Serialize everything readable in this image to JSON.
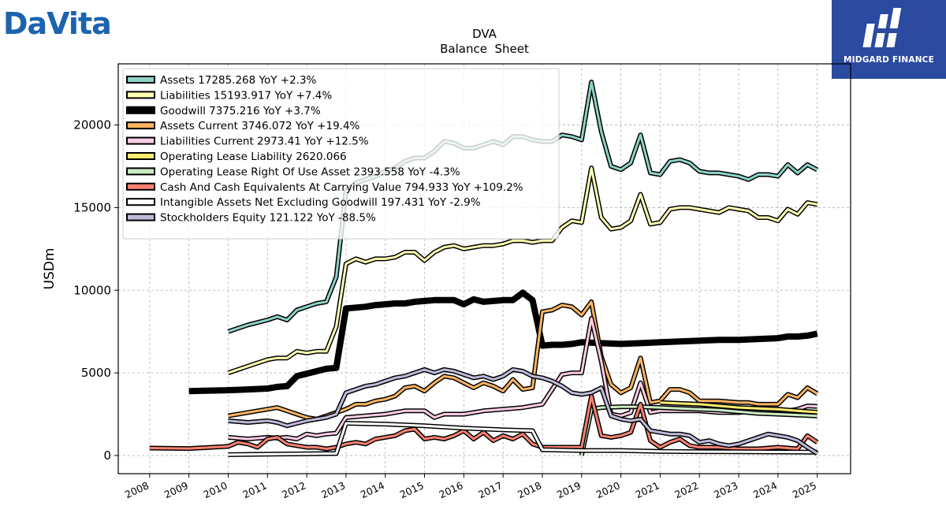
{
  "logo": {
    "left_brand": "DaVita",
    "right_brand": "MIDGARD FINANCE"
  },
  "chart_data": {
    "type": "line",
    "title": "DVA",
    "subtitle": "Balance  Sheet",
    "ylabel": "USDm",
    "xlabel": "",
    "ylim": [
      -1100,
      23700
    ],
    "xlim": [
      2007.2,
      2025.85
    ],
    "y_ticks": [
      0,
      5000,
      10000,
      15000,
      20000
    ],
    "x_ticks": [
      "2008",
      "2009",
      "2010",
      "2011",
      "2012",
      "2013",
      "2014",
      "2015",
      "2016",
      "2017",
      "2018",
      "2019",
      "2020",
      "2021",
      "2022",
      "2023",
      "2024",
      "2025"
    ],
    "grid": true,
    "legend_position": "top-left",
    "series": [
      {
        "name": "Assets",
        "legend": "Assets  17285.268 YoY +2.3%",
        "color": "#8dd3c7",
        "x": [
          2010.0,
          2010.5,
          2011.0,
          2011.25,
          2011.5,
          2011.75,
          2012.0,
          2012.25,
          2012.5,
          2012.75,
          2013.0,
          2013.25,
          2013.5,
          2013.75,
          2014.0,
          2014.25,
          2014.5,
          2014.75,
          2015.0,
          2015.25,
          2015.5,
          2015.75,
          2016.0,
          2016.25,
          2016.5,
          2016.75,
          2017.0,
          2017.25,
          2017.5,
          2017.75,
          2018.0,
          2018.25,
          2018.5,
          2018.75,
          2019.0,
          2019.25,
          2019.5,
          2019.75,
          2020.0,
          2020.25,
          2020.5,
          2020.75,
          2021.0,
          2021.25,
          2021.5,
          2021.75,
          2022.0,
          2022.25,
          2022.5,
          2022.75,
          2023.0,
          2023.25,
          2023.5,
          2023.75,
          2024.0,
          2024.25,
          2024.5,
          2024.75,
          2025.0
        ],
        "values": [
          7500,
          7900,
          8200,
          8400,
          8200,
          8800,
          9000,
          9200,
          9300,
          10800,
          16000,
          16500,
          16700,
          16900,
          17200,
          17400,
          17800,
          18000,
          18000,
          18400,
          19000,
          18900,
          18600,
          18600,
          18800,
          19000,
          18800,
          19300,
          19300,
          19100,
          19000,
          19000,
          19400,
          19300,
          19100,
          22600,
          19600,
          17500,
          17300,
          17700,
          19400,
          17100,
          17000,
          17800,
          17900,
          17700,
          17200,
          17100,
          17100,
          17000,
          16900,
          16700,
          17000,
          17000,
          16900,
          17600,
          17100,
          17600,
          17285
        ]
      },
      {
        "name": "Liabilities",
        "legend": "Liabilities  15193.917 YoY +7.4%",
        "color": "#ffffb3",
        "x": [
          2010.0,
          2010.5,
          2011.0,
          2011.25,
          2011.5,
          2011.75,
          2012.0,
          2012.25,
          2012.5,
          2012.75,
          2013.0,
          2013.25,
          2013.5,
          2013.75,
          2014.0,
          2014.25,
          2014.5,
          2014.75,
          2015.0,
          2015.25,
          2015.5,
          2015.75,
          2016.0,
          2016.25,
          2016.5,
          2016.75,
          2017.0,
          2017.25,
          2017.5,
          2017.75,
          2018.0,
          2018.25,
          2018.5,
          2018.75,
          2019.0,
          2019.25,
          2019.5,
          2019.75,
          2020.0,
          2020.25,
          2020.5,
          2020.75,
          2021.0,
          2021.25,
          2021.5,
          2021.75,
          2022.0,
          2022.25,
          2022.5,
          2022.75,
          2023.0,
          2023.25,
          2023.5,
          2023.75,
          2024.0,
          2024.25,
          2024.5,
          2024.75,
          2025.0
        ],
        "values": [
          5000,
          5400,
          5800,
          5900,
          5900,
          6300,
          6200,
          6300,
          6300,
          7800,
          11600,
          11900,
          11700,
          11900,
          11900,
          12000,
          12300,
          12300,
          11800,
          12300,
          12600,
          12700,
          12500,
          12600,
          12700,
          12700,
          12800,
          13000,
          13000,
          12900,
          13000,
          13000,
          13800,
          14200,
          14100,
          17400,
          14400,
          13700,
          13800,
          14200,
          15800,
          14000,
          14100,
          14900,
          15000,
          15000,
          14900,
          14800,
          14700,
          15000,
          14900,
          14800,
          14400,
          14400,
          14200,
          14900,
          14600,
          15300,
          15194
        ]
      },
      {
        "name": "Goodwill",
        "legend": "Goodwill  7375.216 YoY +3.7%",
        "color": "#000000",
        "x": [
          2009.0,
          2010.0,
          2010.5,
          2011.0,
          2011.25,
          2011.5,
          2011.75,
          2012.0,
          2012.25,
          2012.5,
          2012.75,
          2013.0,
          2013.25,
          2013.5,
          2013.75,
          2014.0,
          2014.25,
          2014.5,
          2014.75,
          2015.0,
          2015.25,
          2015.5,
          2015.75,
          2016.0,
          2016.25,
          2016.5,
          2016.75,
          2017.0,
          2017.25,
          2017.5,
          2017.75,
          2018.0,
          2018.25,
          2018.5,
          2018.75,
          2019.0,
          2019.5,
          2020.0,
          2020.5,
          2021.0,
          2021.5,
          2022.0,
          2022.5,
          2023.0,
          2023.5,
          2024.0,
          2024.25,
          2024.5,
          2024.75,
          2025.0
        ],
        "values": [
          3900,
          3950,
          4000,
          4050,
          4150,
          4200,
          4800,
          4950,
          5100,
          5250,
          5300,
          8900,
          8950,
          9000,
          9100,
          9150,
          9200,
          9200,
          9300,
          9350,
          9400,
          9400,
          9400,
          9150,
          9450,
          9300,
          9350,
          9400,
          9400,
          9850,
          9400,
          6650,
          6700,
          6700,
          6750,
          6850,
          6800,
          6750,
          6800,
          6850,
          6900,
          6950,
          7000,
          7000,
          7050,
          7100,
          7200,
          7200,
          7250,
          7375
        ]
      },
      {
        "name": "Assets Current",
        "legend": "Assets Current  3746.072 YoY +19.4%",
        "color": "#fdb462",
        "x": [
          2010.0,
          2010.5,
          2011.0,
          2011.25,
          2011.5,
          2011.75,
          2012.0,
          2012.25,
          2012.5,
          2012.75,
          2013.0,
          2013.25,
          2013.5,
          2013.75,
          2014.0,
          2014.25,
          2014.5,
          2014.75,
          2015.0,
          2015.25,
          2015.5,
          2015.75,
          2016.0,
          2016.25,
          2016.5,
          2016.75,
          2017.0,
          2017.25,
          2017.5,
          2017.75,
          2018.0,
          2018.25,
          2018.5,
          2018.75,
          2019.0,
          2019.25,
          2019.5,
          2019.75,
          2020.0,
          2020.25,
          2020.5,
          2020.75,
          2021.0,
          2021.25,
          2021.5,
          2021.75,
          2022.0,
          2022.5,
          2023.0,
          2023.25,
          2023.5,
          2023.75,
          2024.0,
          2024.25,
          2024.5,
          2024.75,
          2025.0
        ],
        "values": [
          2400,
          2600,
          2800,
          2900,
          2700,
          2500,
          2300,
          2200,
          2400,
          2600,
          2800,
          3100,
          3100,
          3300,
          3400,
          3600,
          4100,
          4200,
          3900,
          4400,
          4800,
          4700,
          4400,
          4100,
          4400,
          4200,
          3900,
          4600,
          4000,
          4100,
          8700,
          8800,
          9100,
          9000,
          8500,
          9300,
          6000,
          4300,
          3800,
          4100,
          5900,
          3200,
          3300,
          4000,
          4000,
          3800,
          3300,
          3300,
          3200,
          3200,
          3100,
          3100,
          3100,
          3700,
          3500,
          4100,
          3746
        ]
      },
      {
        "name": "Liabilities Current",
        "legend": "Liabilities Current  2973.41 YoY +12.5%",
        "color": "#fccde5",
        "x": [
          2010.0,
          2010.5,
          2011.0,
          2011.25,
          2011.5,
          2011.75,
          2012.0,
          2012.25,
          2012.5,
          2012.75,
          2013.0,
          2013.5,
          2014.0,
          2014.5,
          2015.0,
          2015.25,
          2015.5,
          2016.0,
          2016.5,
          2017.0,
          2017.5,
          2017.75,
          2018.0,
          2018.5,
          2018.75,
          2019.0,
          2019.25,
          2019.5,
          2019.75,
          2020.0,
          2020.25,
          2020.5,
          2020.75,
          2021.0,
          2021.5,
          2022.0,
          2022.5,
          2023.0,
          2023.5,
          2024.0,
          2024.25,
          2024.5,
          2024.75,
          2025.0
        ],
        "values": [
          1100,
          1000,
          1100,
          1050,
          1100,
          1000,
          1300,
          1200,
          1300,
          1350,
          2300,
          2400,
          2500,
          2700,
          2700,
          2300,
          2500,
          2500,
          2700,
          2800,
          2900,
          3000,
          3100,
          4900,
          5000,
          5000,
          8300,
          5700,
          2500,
          2400,
          2600,
          4400,
          2600,
          2700,
          2700,
          2700,
          2600,
          2600,
          2700,
          2800,
          2700,
          2800,
          3000,
          2973
        ]
      },
      {
        "name": "Operating Lease Liability",
        "legend": "Operating Lease Liability  2620.066",
        "color": "#ffed6f",
        "x": [
          2021.0,
          2021.5,
          2022.0,
          2022.5,
          2023.0,
          2023.5,
          2024.0,
          2024.5,
          2025.0
        ],
        "values": [
          3200,
          3150,
          3100,
          3000,
          2900,
          2850,
          2800,
          2700,
          2620
        ]
      },
      {
        "name": "Operating Lease Right Of Use Asset",
        "legend": "Operating Lease Right Of Use Asset  2393.558 YoY -4.3%",
        "color": "#ccebc5",
        "x": [
          2019.0,
          2019.25,
          2019.5,
          2020.0,
          2020.5,
          2021.0,
          2021.5,
          2022.0,
          2022.5,
          2023.0,
          2023.5,
          2024.0,
          2024.5,
          2025.0
        ],
        "values": [
          0,
          2800,
          2900,
          2950,
          2950,
          2900,
          2850,
          2800,
          2750,
          2650,
          2550,
          2500,
          2450,
          2394
        ]
      },
      {
        "name": "Cash And Cash Equivalents At Carrying Value",
        "legend": "Cash And Cash Equivalents At Carrying Value  794.933 YoY +109.2%",
        "color": "#fb8072",
        "x": [
          2008.0,
          2009.0,
          2010.0,
          2010.25,
          2010.5,
          2010.75,
          2011.0,
          2011.25,
          2011.5,
          2011.75,
          2012.0,
          2012.25,
          2012.5,
          2012.75,
          2013.0,
          2013.25,
          2013.5,
          2013.75,
          2014.0,
          2014.25,
          2014.5,
          2014.75,
          2015.0,
          2015.25,
          2015.5,
          2015.75,
          2016.0,
          2016.25,
          2016.5,
          2016.75,
          2017.0,
          2017.25,
          2017.5,
          2017.75,
          2018.0,
          2018.5,
          2019.0,
          2019.25,
          2019.5,
          2019.75,
          2020.0,
          2020.25,
          2020.5,
          2020.75,
          2021.0,
          2021.25,
          2021.5,
          2021.75,
          2022.0,
          2022.5,
          2023.0,
          2023.5,
          2024.0,
          2024.5,
          2024.75,
          2025.0
        ],
        "values": [
          450,
          420,
          550,
          800,
          700,
          500,
          1000,
          1100,
          700,
          600,
          500,
          500,
          400,
          500,
          700,
          800,
          700,
          1000,
          1100,
          1200,
          1500,
          1600,
          1000,
          1100,
          1000,
          1200,
          1500,
          1000,
          1400,
          900,
          1200,
          1000,
          1300,
          700,
          500,
          500,
          500,
          3600,
          1200,
          1100,
          1200,
          1400,
          3100,
          900,
          500,
          800,
          1000,
          600,
          500,
          500,
          400,
          400,
          500,
          400,
          1200,
          795
        ]
      },
      {
        "name": "Intangible Assets Net Excluding Goodwill",
        "legend": "Intangible Assets Net Excluding Goodwill  197.431 YoY -2.9%",
        "color": "#ffffff",
        "x": [
          2010.0,
          2011.0,
          2012.0,
          2012.75,
          2013.0,
          2014.0,
          2015.0,
          2016.0,
          2017.0,
          2017.75,
          2018.0,
          2019.0,
          2020.0,
          2021.0,
          2022.0,
          2023.0,
          2024.0,
          2025.0
        ],
        "values": [
          50,
          80,
          100,
          120,
          1950,
          1900,
          1800,
          1650,
          1550,
          1500,
          350,
          300,
          300,
          250,
          230,
          220,
          210,
          197
        ]
      },
      {
        "name": "Stockholders Equity",
        "legend": "Stockholders Equity  121.122 YoY -88.5%",
        "color": "#bebada",
        "x": [
          2010.0,
          2010.5,
          2011.0,
          2011.25,
          2011.5,
          2011.75,
          2012.0,
          2012.5,
          2012.75,
          2013.0,
          2013.25,
          2013.5,
          2013.75,
          2014.0,
          2014.25,
          2014.5,
          2014.75,
          2015.0,
          2015.25,
          2015.5,
          2015.75,
          2016.0,
          2016.25,
          2016.5,
          2016.75,
          2017.0,
          2017.25,
          2017.5,
          2017.75,
          2018.0,
          2018.25,
          2018.5,
          2018.75,
          2019.0,
          2019.25,
          2019.5,
          2019.75,
          2020.0,
          2020.25,
          2020.5,
          2020.75,
          2021.0,
          2021.25,
          2021.5,
          2021.75,
          2022.0,
          2022.25,
          2022.5,
          2022.75,
          2023.0,
          2023.25,
          2023.5,
          2023.75,
          2024.0,
          2024.25,
          2024.5,
          2024.75,
          2025.0
        ],
        "values": [
          2100,
          2000,
          2100,
          2000,
          1800,
          1950,
          2100,
          2300,
          2500,
          3800,
          4000,
          4200,
          4300,
          4500,
          4700,
          4800,
          5000,
          5200,
          5000,
          5200,
          5100,
          4900,
          4700,
          4800,
          4600,
          4800,
          5200,
          5100,
          4800,
          4700,
          4500,
          4200,
          3800,
          3700,
          3800,
          4100,
          2400,
          2200,
          2100,
          2200,
          1500,
          1400,
          1300,
          1300,
          1200,
          800,
          900,
          700,
          600,
          700,
          900,
          1100,
          1300,
          1200,
          1100,
          900,
          500,
          121
        ]
      }
    ]
  }
}
